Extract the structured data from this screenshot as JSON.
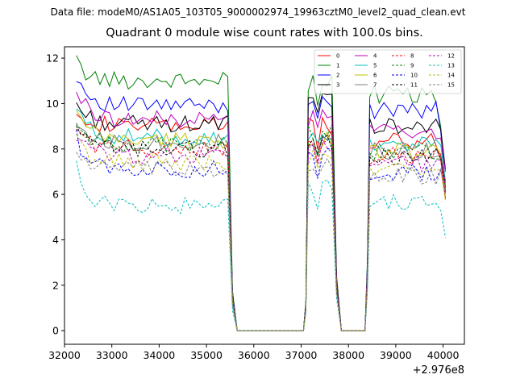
{
  "suptitle": "Data file: modeM0/AS1A05_103T05_9000002974_19963cztM0_level2_quad_clean.evt",
  "chart_data": {
    "type": "line",
    "title": "Quadrant 0 module wise count rates with 100.0s bins.",
    "xlabel": "",
    "ylabel": "",
    "x_offset_label": "+2.976e8",
    "xlim": [
      32000,
      40450
    ],
    "ylim": [
      -0.6,
      12.5
    ],
    "x_ticks": [
      32000,
      33000,
      34000,
      35000,
      36000,
      37000,
      38000,
      39000,
      40000
    ],
    "y_ticks": [
      0,
      2,
      4,
      6,
      8,
      10,
      12
    ],
    "x_tick_labels": [
      "32000",
      "33000",
      "34000",
      "35000",
      "36000",
      "37000",
      "38000",
      "39000",
      "40000"
    ],
    "y_tick_labels": [
      "0",
      "2",
      "4",
      "6",
      "8",
      "10",
      "12"
    ],
    "grid": false,
    "legend_position": "top-right",
    "segments": [
      {
        "x_start": 32250,
        "x_end": 35450,
        "step": 100
      },
      {
        "x_start": 37150,
        "x_end": 37650,
        "step": 100
      },
      {
        "x_start": 38450,
        "x_end": 40050,
        "step": 100
      }
    ],
    "series": [
      {
        "name": "0",
        "color": "#ff0000",
        "dash": "solid",
        "segment_levels": [
          9.0,
          9.0,
          8.3
        ],
        "start_value": 9.9,
        "end_value": 5.8
      },
      {
        "name": "1",
        "color": "#008000",
        "dash": "solid",
        "segment_levels": [
          11.0,
          10.9,
          10.4
        ],
        "start_value": 11.8,
        "end_value": 6.1
      },
      {
        "name": "2",
        "color": "#0000ff",
        "dash": "solid",
        "segment_levels": [
          9.9,
          10.2,
          9.7
        ],
        "start_value": 11.3,
        "end_value": 6.3
      },
      {
        "name": "3",
        "color": "#000000",
        "dash": "solid",
        "segment_levels": [
          9.1,
          10.1,
          9.0
        ],
        "start_value": 10.0,
        "end_value": 7.1
      },
      {
        "name": "4",
        "color": "#bf00bf",
        "dash": "solid",
        "segment_levels": [
          9.3,
          9.4,
          8.8
        ],
        "start_value": 10.6,
        "end_value": 7.0
      },
      {
        "name": "5",
        "color": "#00bfbf",
        "dash": "solid",
        "segment_levels": [
          8.5,
          8.6,
          8.2
        ],
        "start_value": 9.8,
        "end_value": 6.6
      },
      {
        "name": "6",
        "color": "#bfbf00",
        "dash": "solid",
        "segment_levels": [
          8.4,
          8.4,
          7.9
        ],
        "start_value": 9.6,
        "end_value": 6.4
      },
      {
        "name": "7",
        "color": "#808080",
        "dash": "solid",
        "segment_levels": [
          8.3,
          8.3,
          7.9
        ],
        "start_value": 9.2,
        "end_value": 6.5
      },
      {
        "name": "8",
        "color": "#ff0000",
        "dash": "dashed",
        "segment_levels": [
          8.0,
          8.5,
          7.7
        ],
        "start_value": 9.0,
        "end_value": 6.2
      },
      {
        "name": "9",
        "color": "#008000",
        "dash": "dashed",
        "segment_levels": [
          8.2,
          8.7,
          7.9
        ],
        "start_value": 9.1,
        "end_value": 6.3
      },
      {
        "name": "10",
        "color": "#0000ff",
        "dash": "dashed",
        "segment_levels": [
          7.1,
          7.7,
          7.0
        ],
        "start_value": 8.5,
        "end_value": 6.0
      },
      {
        "name": "11",
        "color": "#000000",
        "dash": "dashed",
        "segment_levels": [
          8.0,
          8.3,
          7.7
        ],
        "start_value": 8.8,
        "end_value": 6.5
      },
      {
        "name": "12",
        "color": "#bf00bf",
        "dash": "dashed",
        "segment_levels": [
          7.7,
          8.0,
          7.4
        ],
        "start_value": 8.6,
        "end_value": 6.4
      },
      {
        "name": "13",
        "color": "#00bfbf",
        "dash": "dashed",
        "segment_levels": [
          5.5,
          6.4,
          5.6
        ],
        "start_value": 7.1,
        "end_value": 4.1
      },
      {
        "name": "14",
        "color": "#bfbf00",
        "dash": "dashed",
        "segment_levels": [
          7.4,
          7.6,
          7.1
        ],
        "start_value": 8.4,
        "end_value": 5.7
      },
      {
        "name": "15",
        "color": "#808080",
        "dash": "dashed",
        "segment_levels": [
          7.1,
          7.4,
          6.8
        ],
        "start_value": 7.9,
        "end_value": 6.0
      }
    ]
  }
}
